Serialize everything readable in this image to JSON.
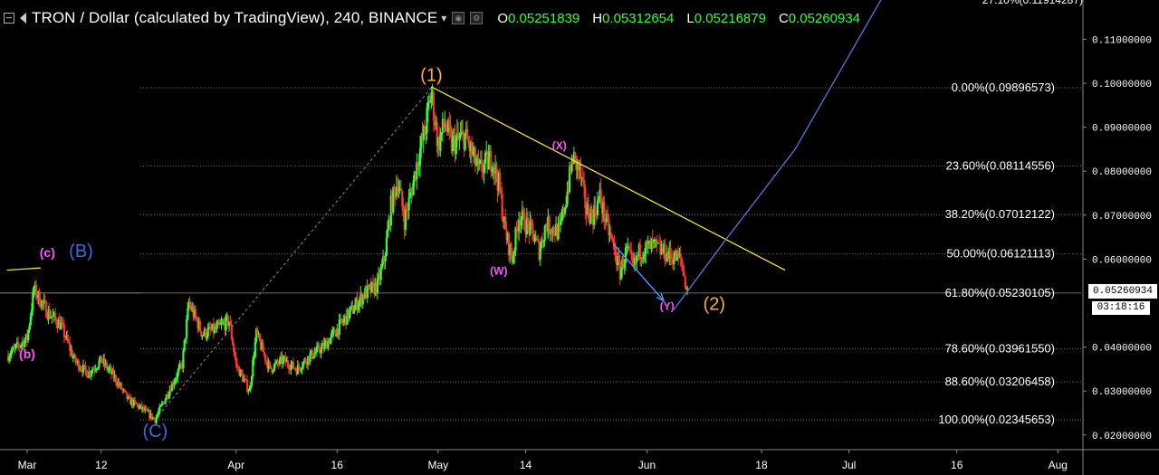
{
  "header": {
    "title": "TRON / Dollar (calculated by TradingView), 240, BINANCE",
    "open_key": "O",
    "open": "0.05251839",
    "high_key": "H",
    "high": "0.05312654",
    "low_key": "L",
    "low": "0.05216879",
    "close_key": "C",
    "close": "0.05260934"
  },
  "price_tag": "0.05260934",
  "countdown": "03:18:16",
  "colors": {
    "background": "#000000",
    "up": "#33ff33",
    "down": "#ff3333",
    "trendline": "#ffee33",
    "projection": "#5577dd",
    "fib_level_text": "#ffffff",
    "grid": "#555555",
    "wave_primary": "#ffaa44",
    "wave_minor": "#ff55ff",
    "wave_abc": "#4466dd"
  },
  "chart_data": {
    "type": "candlestick",
    "symbol": "TRXUSD",
    "interval": "240",
    "y_axis": {
      "ticks": [
        "0.11000000",
        "0.10000000",
        "0.09000000",
        "0.08000000",
        "0.07000000",
        "0.06000000",
        "0.04000000",
        "0.03000000",
        "0.02000000"
      ],
      "tick_values": [
        0.11,
        0.1,
        0.09,
        0.08,
        0.07,
        0.06,
        0.04,
        0.03,
        0.02
      ],
      "top_partial": "27.10%(0.11914287)",
      "range": [
        0.0175,
        0.1215
      ]
    },
    "x_axis": {
      "ticks": [
        "Mar",
        "12",
        "Apr",
        "16",
        "May",
        "14",
        "Jun",
        "18",
        "Jul",
        "16",
        "Aug"
      ],
      "tick_days": [
        0,
        11,
        31,
        46,
        61,
        74,
        92,
        109,
        122,
        138,
        153
      ],
      "range_days": [
        0,
        160
      ]
    },
    "fib_levels": [
      {
        "label": "0.00%(0.09896573)",
        "value": 0.09896573
      },
      {
        "label": "23.60%(0.08114556)",
        "value": 0.08114556
      },
      {
        "label": "38.20%(0.07012122)",
        "value": 0.07012122
      },
      {
        "label": "50.00%(0.06121113)",
        "value": 0.06121113
      },
      {
        "label": "61.80%(0.05230105)",
        "value": 0.05230105
      },
      {
        "label": "78.60%(0.03961550)",
        "value": 0.0396155
      },
      {
        "label": "88.60%(0.03206458)",
        "value": 0.03206458
      },
      {
        "label": "100.00%(0.02345653)",
        "value": 0.02345653
      }
    ],
    "price_path": [
      {
        "d": -3,
        "p": 0.038
      },
      {
        "d": 0,
        "p": 0.042
      },
      {
        "d": 1,
        "p": 0.053
      },
      {
        "d": 3,
        "p": 0.048
      },
      {
        "d": 5,
        "p": 0.045
      },
      {
        "d": 7,
        "p": 0.037
      },
      {
        "d": 9,
        "p": 0.034
      },
      {
        "d": 11,
        "p": 0.037
      },
      {
        "d": 13,
        "p": 0.033
      },
      {
        "d": 15,
        "p": 0.028
      },
      {
        "d": 17,
        "p": 0.026
      },
      {
        "d": 19,
        "p": 0.0235
      },
      {
        "d": 21,
        "p": 0.03
      },
      {
        "d": 23,
        "p": 0.036
      },
      {
        "d": 24,
        "p": 0.05
      },
      {
        "d": 26,
        "p": 0.043
      },
      {
        "d": 28,
        "p": 0.044
      },
      {
        "d": 30,
        "p": 0.046
      },
      {
        "d": 31,
        "p": 0.036
      },
      {
        "d": 33,
        "p": 0.03
      },
      {
        "d": 34,
        "p": 0.043
      },
      {
        "d": 36,
        "p": 0.035
      },
      {
        "d": 38,
        "p": 0.037
      },
      {
        "d": 40,
        "p": 0.035
      },
      {
        "d": 42,
        "p": 0.038
      },
      {
        "d": 44,
        "p": 0.04
      },
      {
        "d": 46,
        "p": 0.044
      },
      {
        "d": 48,
        "p": 0.048
      },
      {
        "d": 50,
        "p": 0.052
      },
      {
        "d": 52,
        "p": 0.054
      },
      {
        "d": 53,
        "p": 0.06
      },
      {
        "d": 54,
        "p": 0.072
      },
      {
        "d": 55,
        "p": 0.078
      },
      {
        "d": 56,
        "p": 0.069
      },
      {
        "d": 57,
        "p": 0.075
      },
      {
        "d": 58,
        "p": 0.083
      },
      {
        "d": 59,
        "p": 0.089
      },
      {
        "d": 60,
        "p": 0.098
      },
      {
        "d": 61,
        "p": 0.086
      },
      {
        "d": 62,
        "p": 0.091
      },
      {
        "d": 63,
        "p": 0.086
      },
      {
        "d": 65,
        "p": 0.088
      },
      {
        "d": 67,
        "p": 0.08
      },
      {
        "d": 69,
        "p": 0.083
      },
      {
        "d": 70,
        "p": 0.077
      },
      {
        "d": 71,
        "p": 0.066
      },
      {
        "d": 72,
        "p": 0.06
      },
      {
        "d": 73,
        "p": 0.07
      },
      {
        "d": 75,
        "p": 0.066
      },
      {
        "d": 76,
        "p": 0.062
      },
      {
        "d": 77,
        "p": 0.068
      },
      {
        "d": 79,
        "p": 0.066
      },
      {
        "d": 80,
        "p": 0.074
      },
      {
        "d": 81,
        "p": 0.083
      },
      {
        "d": 82,
        "p": 0.08
      },
      {
        "d": 83,
        "p": 0.071
      },
      {
        "d": 84,
        "p": 0.07
      },
      {
        "d": 85,
        "p": 0.074
      },
      {
        "d": 86,
        "p": 0.068
      },
      {
        "d": 87,
        "p": 0.063
      },
      {
        "d": 88,
        "p": 0.057
      },
      {
        "d": 89,
        "p": 0.062
      },
      {
        "d": 90,
        "p": 0.058
      },
      {
        "d": 91,
        "p": 0.062
      },
      {
        "d": 93,
        "p": 0.063
      },
      {
        "d": 95,
        "p": 0.061
      },
      {
        "d": 97,
        "p": 0.06
      },
      {
        "d": 98,
        "p": 0.0525
      }
    ],
    "annotations": [
      {
        "text": "(1)",
        "d": 60,
        "p": 0.1005,
        "color": "#ffaa44",
        "size": 20
      },
      {
        "text": "(2)",
        "d": 102,
        "p": 0.0485,
        "color": "#ffaa44",
        "size": 20
      },
      {
        "text": "(X)",
        "d": 79,
        "p": 0.085,
        "color": "#ff55ff",
        "size": 12
      },
      {
        "text": "(W)",
        "d": 70,
        "p": 0.0565,
        "color": "#ff55ff",
        "size": 12
      },
      {
        "text": "(Y)",
        "d": 95,
        "p": 0.0485,
        "color": "#ff55ff",
        "size": 12
      },
      {
        "text": "(c)",
        "d": 3,
        "p": 0.0605,
        "color": "#ff55ff",
        "size": 14
      },
      {
        "text": "(B)",
        "d": 8,
        "p": 0.0605,
        "color": "#4466dd",
        "size": 20
      },
      {
        "text": "(b)",
        "d": 0,
        "p": 0.0375,
        "color": "#ff55ff",
        "size": 14
      },
      {
        "text": "(C)",
        "d": 19,
        "p": 0.0195,
        "color": "#4466dd",
        "size": 20
      }
    ],
    "trendline": {
      "from": {
        "d": 60,
        "p": 0.0992
      },
      "to": {
        "d": 112.5,
        "p": 0.0575
      }
    },
    "fib_anchor_line": {
      "from": {
        "d": 19,
        "p": 0.0235
      },
      "to": {
        "d": 60,
        "p": 0.099
      }
    },
    "small_yellow_line": {
      "from": {
        "d": -3,
        "p": 0.0575
      },
      "to": {
        "d": 2,
        "p": 0.058
      }
    },
    "projection_line": [
      {
        "d": 96,
        "p": 0.0485
      },
      {
        "d": 103,
        "p": 0.063
      },
      {
        "d": 114,
        "p": 0.085
      },
      {
        "d": 129,
        "p": 0.125
      }
    ],
    "yx_arrow": {
      "from": {
        "d": 87,
        "p": 0.0635
      },
      "to": {
        "d": 94.5,
        "p": 0.0505
      }
    }
  }
}
